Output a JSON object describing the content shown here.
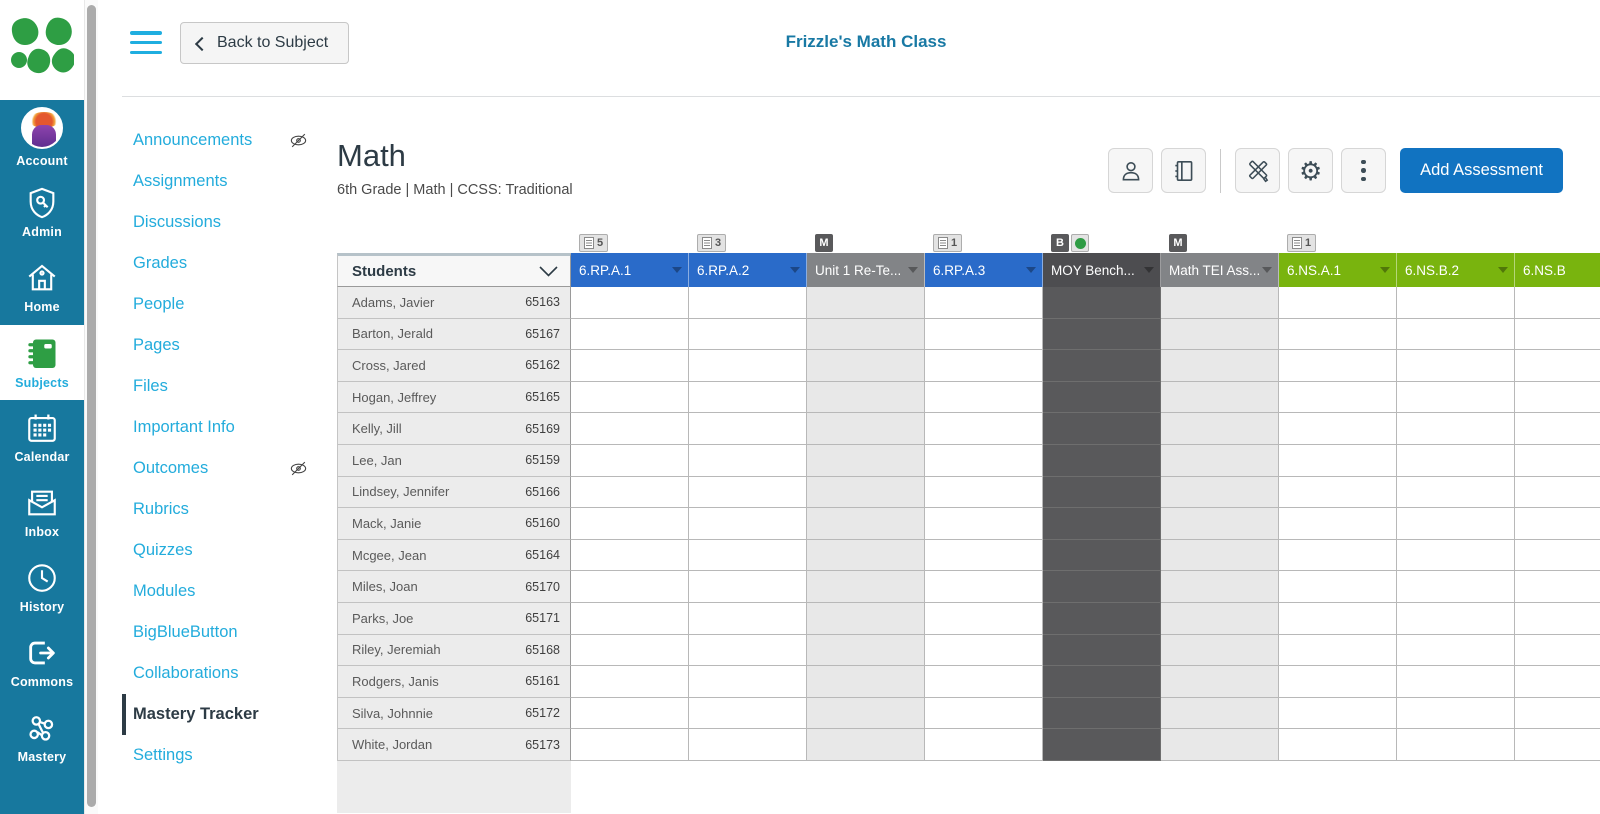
{
  "app": {
    "back_button_label": "Back to Subject",
    "class_title": "Frizzle's Math Class"
  },
  "sidebar": {
    "items": [
      {
        "label": "Account",
        "icon": "avatar"
      },
      {
        "label": "Admin",
        "icon": "shield-key"
      },
      {
        "label": "Home",
        "icon": "house"
      },
      {
        "label": "Subjects",
        "icon": "notebook-green",
        "active": true
      },
      {
        "label": "Calendar",
        "icon": "calendar"
      },
      {
        "label": "Inbox",
        "icon": "envelope"
      },
      {
        "label": "History",
        "icon": "clock"
      },
      {
        "label": "Commons",
        "icon": "arrow-exit"
      },
      {
        "label": "Mastery",
        "icon": "share-nodes"
      }
    ]
  },
  "course_nav": {
    "items": [
      {
        "label": "Announcements",
        "hidden_icon": true
      },
      {
        "label": "Assignments"
      },
      {
        "label": "Discussions"
      },
      {
        "label": "Grades"
      },
      {
        "label": "People"
      },
      {
        "label": "Pages"
      },
      {
        "label": "Files"
      },
      {
        "label": "Important Info"
      },
      {
        "label": "Outcomes",
        "hidden_icon": true
      },
      {
        "label": "Rubrics"
      },
      {
        "label": "Quizzes"
      },
      {
        "label": "Modules"
      },
      {
        "label": "BigBlueButton"
      },
      {
        "label": "Collaborations"
      },
      {
        "label": "Mastery Tracker",
        "active": true
      },
      {
        "label": "Settings"
      }
    ]
  },
  "main": {
    "title": "Math",
    "subtitle": "6th Grade  |  Math  |  CCSS: Traditional",
    "toolbar_icons": [
      "person",
      "notebook",
      "tools",
      "gear",
      "kebab"
    ],
    "add_assessment_label": "Add Assessment"
  },
  "table": {
    "students_header": "Students",
    "columns": [
      {
        "label": "6.RP.A.1",
        "color_type": "blue",
        "badge": {
          "type": "count",
          "value": "5"
        }
      },
      {
        "label": "6.RP.A.2",
        "color_type": "blue",
        "badge": {
          "type": "count",
          "value": "3"
        }
      },
      {
        "label": "Unit 1 Re-Te...",
        "color_type": "gray",
        "badge": {
          "type": "letter",
          "value": "M"
        }
      },
      {
        "label": "6.RP.A.3",
        "color_type": "blue",
        "badge": {
          "type": "count",
          "value": "1"
        }
      },
      {
        "label": "MOY Bench...",
        "color_type": "dark",
        "badge": {
          "type": "letter-dot",
          "value": "B"
        }
      },
      {
        "label": "Math TEI Ass...",
        "color_type": "gray",
        "badge": {
          "type": "letter",
          "value": "M"
        }
      },
      {
        "label": "6.NS.A.1",
        "color_type": "green",
        "badge": {
          "type": "count",
          "value": "1"
        }
      },
      {
        "label": "6.NS.B.2",
        "color_type": "green",
        "badge": null
      },
      {
        "label": "6.NS.B",
        "color_type": "green",
        "badge": null
      }
    ],
    "students": [
      {
        "name": "Adams, Javier",
        "id": "65163"
      },
      {
        "name": "Barton, Jerald",
        "id": "65167"
      },
      {
        "name": "Cross, Jared",
        "id": "65162"
      },
      {
        "name": "Hogan, Jeffrey",
        "id": "65165"
      },
      {
        "name": "Kelly, Jill",
        "id": "65169"
      },
      {
        "name": "Lee, Jan",
        "id": "65159"
      },
      {
        "name": "Lindsey, Jennifer",
        "id": "65166"
      },
      {
        "name": "Mack, Janie",
        "id": "65160"
      },
      {
        "name": "Mcgee, Jean",
        "id": "65164"
      },
      {
        "name": "Miles, Joan",
        "id": "65170"
      },
      {
        "name": "Parks, Joe",
        "id": "65171"
      },
      {
        "name": "Riley, Jeremiah",
        "id": "65168"
      },
      {
        "name": "Rodgers, Janis",
        "id": "65161"
      },
      {
        "name": "Silva, Johnnie",
        "id": "65172"
      },
      {
        "name": "White, Jordan",
        "id": "65173"
      }
    ]
  },
  "colors": {
    "sidebar_bg": "#17789E",
    "link_cyan": "#23ACDC",
    "title_teal": "#1879A4",
    "standard_blue": "#2A6BC9",
    "standard_green": "#79B40E",
    "assessment_gray": "#828487",
    "benchmark_dark": "#4D4D50",
    "add_button_blue": "#1173C1",
    "status_dot_green": "#2E9B44"
  }
}
